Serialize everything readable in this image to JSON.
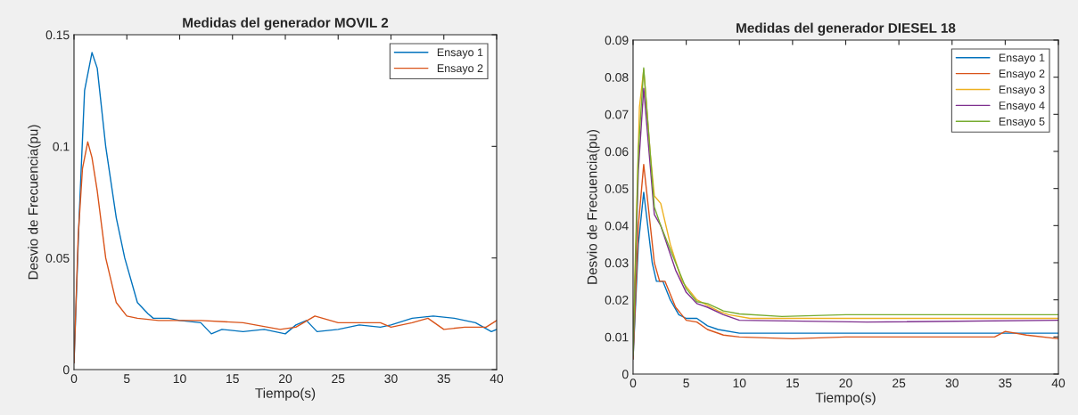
{
  "chart_data": [
    {
      "type": "line",
      "title": "Medidas del generador MOVIL 2",
      "xlabel": "Tiempo(s)",
      "ylabel": "Desvio de Frecuencia(pu)",
      "xlim": [
        0,
        40
      ],
      "ylim": [
        0,
        0.15
      ],
      "xticks": [
        0,
        5,
        10,
        15,
        20,
        25,
        30,
        35,
        40
      ],
      "yticks": [
        0,
        0.05,
        0.1,
        0.15
      ],
      "legend": "top right",
      "grid": false,
      "series": [
        {
          "name": "Ensayo 1",
          "color": "#0072bd",
          "x": [
            0,
            0.5,
            1,
            1.7,
            2.2,
            3,
            4,
            4.8,
            6,
            7,
            7.5,
            9,
            10,
            12,
            13,
            14,
            16,
            18,
            20,
            21,
            22,
            23,
            25,
            27,
            29,
            30,
            32,
            34,
            36,
            38,
            39.5,
            40
          ],
          "values": [
            0.003,
            0.07,
            0.125,
            0.142,
            0.135,
            0.1,
            0.068,
            0.05,
            0.03,
            0.025,
            0.023,
            0.023,
            0.022,
            0.021,
            0.016,
            0.018,
            0.017,
            0.018,
            0.016,
            0.02,
            0.022,
            0.017,
            0.018,
            0.02,
            0.019,
            0.02,
            0.023,
            0.024,
            0.023,
            0.021,
            0.017,
            0.018
          ]
        },
        {
          "name": "Ensayo 2",
          "color": "#d95319",
          "x": [
            0,
            0.4,
            0.8,
            1.3,
            1.7,
            2.2,
            3,
            4,
            5,
            6,
            8,
            10,
            12,
            16,
            19.5,
            21,
            22.8,
            25,
            29,
            30,
            32,
            33.5,
            35,
            37,
            39,
            40
          ],
          "values": [
            0.003,
            0.06,
            0.09,
            0.102,
            0.095,
            0.08,
            0.05,
            0.03,
            0.024,
            0.023,
            0.022,
            0.022,
            0.022,
            0.021,
            0.018,
            0.019,
            0.024,
            0.021,
            0.021,
            0.019,
            0.021,
            0.023,
            0.018,
            0.019,
            0.019,
            0.022
          ]
        }
      ]
    },
    {
      "type": "line",
      "title": "Medidas del generador DIESEL 18",
      "xlabel": "Tiempo(s)",
      "ylabel": "Desvio de Frecuencia(pu)",
      "xlim": [
        0,
        40
      ],
      "ylim": [
        0,
        0.09
      ],
      "xticks": [
        0,
        5,
        10,
        15,
        20,
        25,
        30,
        35,
        40
      ],
      "yticks": [
        0,
        0.01,
        0.02,
        0.03,
        0.04,
        0.05,
        0.06,
        0.07,
        0.08,
        0.09
      ],
      "legend": "top right",
      "grid": false,
      "series": [
        {
          "name": "Ensayo 1",
          "color": "#0072bd",
          "x": [
            0,
            0.5,
            1,
            1.8,
            2.2,
            2.8,
            3.5,
            4.3,
            5,
            6,
            7,
            8,
            10,
            20,
            30,
            35,
            40
          ],
          "values": [
            0.004,
            0.035,
            0.049,
            0.03,
            0.025,
            0.025,
            0.02,
            0.016,
            0.015,
            0.015,
            0.013,
            0.012,
            0.011,
            0.011,
            0.011,
            0.011,
            0.011
          ]
        },
        {
          "name": "Ensayo 2",
          "color": "#d95319",
          "x": [
            0,
            0.5,
            1,
            2,
            2.5,
            3,
            4,
            5,
            6,
            7,
            8.5,
            10,
            15,
            20,
            34,
            35,
            37,
            40
          ],
          "values": [
            0.004,
            0.04,
            0.0565,
            0.03,
            0.025,
            0.025,
            0.018,
            0.0145,
            0.014,
            0.012,
            0.0105,
            0.01,
            0.0095,
            0.01,
            0.01,
            0.0115,
            0.0105,
            0.0095
          ]
        },
        {
          "name": "Ensayo 3",
          "color": "#edb120",
          "x": [
            0,
            0.6,
            1,
            1.6,
            2,
            2.6,
            3.5,
            4.6,
            6,
            7,
            8,
            9,
            11,
            20,
            40
          ],
          "values": [
            0.009,
            0.072,
            0.082,
            0.06,
            0.048,
            0.046,
            0.035,
            0.025,
            0.02,
            0.0185,
            0.017,
            0.016,
            0.015,
            0.015,
            0.015
          ]
        },
        {
          "name": "Ensayo 4",
          "color": "#7e2f8e",
          "x": [
            0,
            0.5,
            1,
            2,
            2.6,
            4,
            5,
            6,
            7,
            8.5,
            10,
            22,
            40
          ],
          "values": [
            0.005,
            0.055,
            0.077,
            0.043,
            0.04,
            0.028,
            0.022,
            0.019,
            0.018,
            0.016,
            0.0145,
            0.014,
            0.0145
          ]
        },
        {
          "name": "Ensayo 5",
          "color": "#77ac30",
          "x": [
            0,
            0.5,
            1,
            2,
            2.6,
            4,
            5,
            6,
            7,
            8.5,
            10,
            14,
            20,
            40
          ],
          "values": [
            0.005,
            0.06,
            0.0825,
            0.045,
            0.04,
            0.03,
            0.023,
            0.0195,
            0.019,
            0.017,
            0.0162,
            0.0155,
            0.016,
            0.016
          ]
        }
      ]
    }
  ]
}
